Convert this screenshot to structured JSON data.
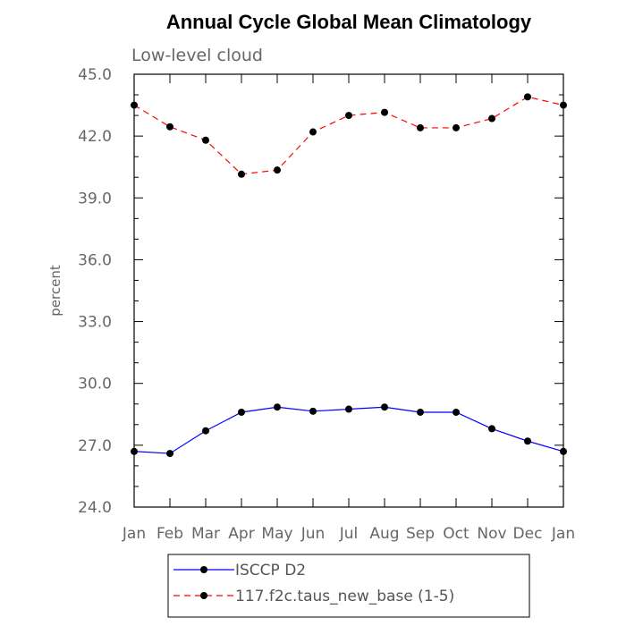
{
  "chart_data": {
    "type": "line",
    "title": "Annual Cycle Global Mean Climatology",
    "subtitle": "Low-level cloud",
    "xlabel": "",
    "ylabel": "percent",
    "categories": [
      "Jan",
      "Feb",
      "Mar",
      "Apr",
      "May",
      "Jun",
      "Jul",
      "Aug",
      "Sep",
      "Oct",
      "Nov",
      "Dec",
      "Jan"
    ],
    "ylim": [
      24.0,
      45.0
    ],
    "yticks": [
      "24.0",
      "27.0",
      "30.0",
      "33.0",
      "36.0",
      "39.0",
      "42.0",
      "45.0"
    ],
    "grid": false,
    "legend_position": "bottom",
    "series": [
      {
        "name": "ISCCP D2",
        "color": "#0000ff",
        "dash": "solid",
        "values": [
          26.7,
          26.6,
          27.7,
          28.6,
          28.85,
          28.65,
          28.75,
          28.85,
          28.6,
          28.6,
          27.8,
          27.2,
          26.7
        ]
      },
      {
        "name": "117.f2c.taus_new_base (1-5)",
        "color": "#ff0000",
        "dash": "dashed",
        "values": [
          43.5,
          42.45,
          41.8,
          40.15,
          40.35,
          42.2,
          43.0,
          43.15,
          42.4,
          42.4,
          42.85,
          43.9,
          43.5
        ]
      }
    ]
  }
}
